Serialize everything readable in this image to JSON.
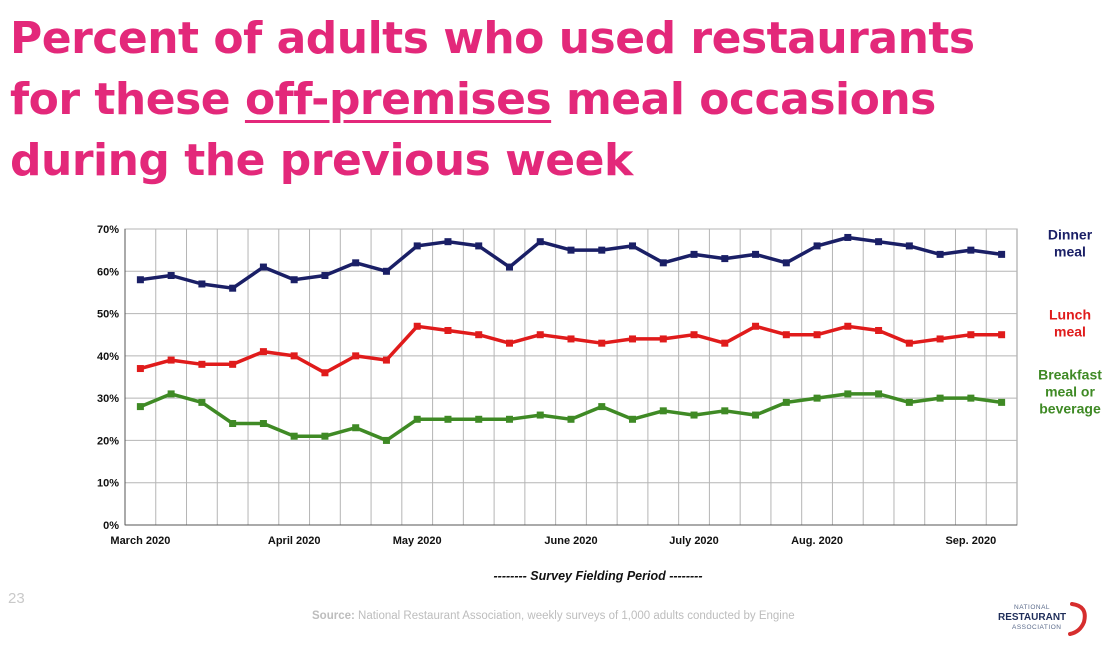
{
  "title": {
    "line1": "Percent of adults who used restaurants",
    "line2_pre": "for these ",
    "line2_underlined": "off-premises",
    "line2_post": " meal occasions",
    "line3": "during the previous week"
  },
  "slide_number": "23",
  "source": {
    "label": "Source:",
    "text": " National Restaurant Association, weekly surveys of 1,000 adults conducted by Engine"
  },
  "logo": {
    "line1": "NATIONAL",
    "line2": "RESTAURANT",
    "line3": "ASSOCIATION"
  },
  "chart_data": {
    "type": "line",
    "title": "",
    "xlabel": "-------- Survey Fielding Period --------",
    "ylabel": "",
    "ylim": [
      0,
      70
    ],
    "y_ticks": [
      "0%",
      "10%",
      "20%",
      "30%",
      "40%",
      "50%",
      "60%",
      "70%"
    ],
    "x_tick_labels": [
      {
        "index": 0,
        "label": "March 2020"
      },
      {
        "index": 5,
        "label": "April 2020"
      },
      {
        "index": 9,
        "label": "May 2020"
      },
      {
        "index": 14,
        "label": "June 2020"
      },
      {
        "index": 18,
        "label": "July 2020"
      },
      {
        "index": 22,
        "label": "Aug. 2020"
      },
      {
        "index": 27,
        "label": "Sep. 2020"
      }
    ],
    "grid": true,
    "legend_position": "right",
    "series": [
      {
        "name": "Dinner meal",
        "legend_lines": [
          "Dinner",
          "meal"
        ],
        "color": "#1a1f66",
        "values": [
          58,
          59,
          57,
          56,
          61,
          58,
          59,
          62,
          60,
          66,
          67,
          66,
          61,
          67,
          65,
          65,
          66,
          62,
          64,
          63,
          64,
          62,
          66,
          68,
          67,
          66,
          64,
          65,
          64
        ]
      },
      {
        "name": "Lunch meal",
        "legend_lines": [
          "Lunch",
          "meal"
        ],
        "color": "#e01b1b",
        "values": [
          37,
          39,
          38,
          38,
          41,
          40,
          36,
          40,
          39,
          47,
          46,
          45,
          43,
          45,
          44,
          43,
          44,
          44,
          45,
          43,
          47,
          45,
          45,
          47,
          46,
          43,
          44,
          45,
          45
        ]
      },
      {
        "name": "Breakfast meal or beverage",
        "legend_lines": [
          "Breakfast",
          "meal or",
          "beverage"
        ],
        "color": "#3f8a25",
        "values": [
          28,
          31,
          29,
          24,
          24,
          21,
          21,
          23,
          20,
          25,
          25,
          25,
          25,
          26,
          25,
          28,
          25,
          27,
          26,
          27,
          26,
          29,
          30,
          31,
          31,
          29,
          30,
          30,
          29
        ]
      }
    ]
  }
}
